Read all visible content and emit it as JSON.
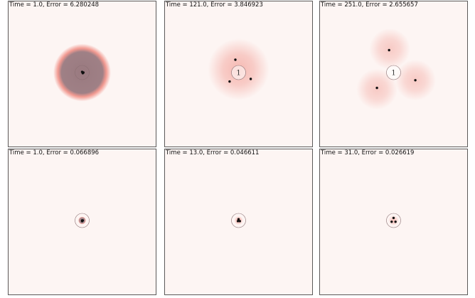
{
  "chart_data": [
    {
      "type": "heatmap",
      "title": "Time = 1.0, Error = 6.280248",
      "colors": {
        "glow": "#f08a80",
        "core": "#9a7a80"
      },
      "blobs": [
        {
          "x": 0,
          "y": 0,
          "r": 0.45,
          "alpha": 1.0,
          "core": true
        }
      ],
      "points": [
        {
          "x": 0.0,
          "y": 0.01
        },
        {
          "x": 0.02,
          "y": 0.0
        },
        {
          "x": 0.01,
          "y": -0.01
        }
      ],
      "circle_label": ""
    },
    {
      "type": "heatmap",
      "title": "Time = 121.0, Error = 3.846923",
      "colors": {
        "glow": "#f08a80",
        "core": "#9a7a80"
      },
      "blobs": [
        {
          "x": 0.0,
          "y": 0.05,
          "r": 0.48,
          "alpha": 0.7,
          "core": false
        }
      ],
      "points": [
        {
          "x": -0.05,
          "y": 0.2
        },
        {
          "x": 0.19,
          "y": -0.1
        },
        {
          "x": -0.14,
          "y": -0.14
        }
      ],
      "circle_label": "1"
    },
    {
      "type": "heatmap",
      "title": "Time = 251.0, Error = 2.655657",
      "colors": {
        "glow": "#f08a80",
        "core": "#9a7a80"
      },
      "blobs": [
        {
          "x": -0.06,
          "y": 0.37,
          "r": 0.32,
          "alpha": 0.5,
          "core": false
        },
        {
          "x": 0.34,
          "y": -0.12,
          "r": 0.32,
          "alpha": 0.5,
          "core": false
        },
        {
          "x": -0.26,
          "y": -0.26,
          "r": 0.32,
          "alpha": 0.5,
          "core": false
        }
      ],
      "points": [
        {
          "x": -0.07,
          "y": 0.35
        },
        {
          "x": 0.34,
          "y": -0.12
        },
        {
          "x": -0.26,
          "y": -0.24
        }
      ],
      "circle_label": "1"
    },
    {
      "type": "heatmap",
      "title": "Time = 1.0, Error = 0.066896",
      "colors": {
        "glow": "#f08a80",
        "core": "#9a7a80"
      },
      "blobs": [
        {
          "x": 0,
          "y": 0,
          "r": 0.06,
          "alpha": 0.9,
          "core": true
        }
      ],
      "points": [
        {
          "x": 0.0,
          "y": 0.0
        },
        {
          "x": 0.01,
          "y": 0.0
        },
        {
          "x": 0.0,
          "y": -0.01
        }
      ],
      "circle_label": ""
    },
    {
      "type": "heatmap",
      "title": "Time = 13.0, Error = 0.046611",
      "colors": {
        "glow": "#f08a80",
        "core": "#9a7a80"
      },
      "blobs": [
        {
          "x": 0,
          "y": 0,
          "r": 0.07,
          "alpha": 0.8,
          "core": false
        }
      ],
      "points": [
        {
          "x": 0.0,
          "y": 0.02
        },
        {
          "x": -0.01,
          "y": -0.01
        },
        {
          "x": 0.02,
          "y": -0.01
        }
      ],
      "circle_label": ""
    },
    {
      "type": "heatmap",
      "title": "Time = 31.0, Error = 0.026619",
      "colors": {
        "glow": "#f08a80",
        "core": "#9a7a80"
      },
      "blobs": [
        {
          "x": 0,
          "y": 0,
          "r": 0.08,
          "alpha": 0.6,
          "core": false
        }
      ],
      "points": [
        {
          "x": 0.0,
          "y": 0.04
        },
        {
          "x": -0.03,
          "y": -0.02
        },
        {
          "x": 0.03,
          "y": -0.02
        }
      ],
      "circle_label": ""
    }
  ]
}
